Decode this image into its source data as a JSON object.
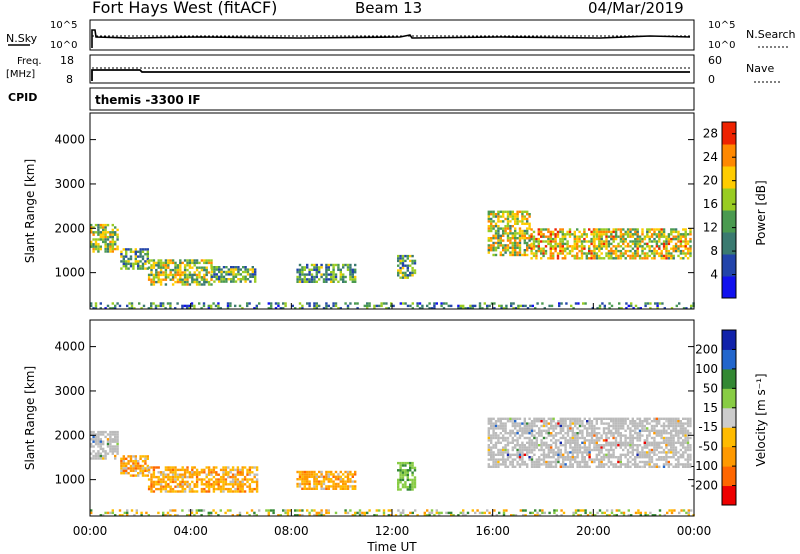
{
  "header": {
    "title": "Fort Hays West (fitACF)",
    "beam": "Beam 13",
    "date": "04/Mar/2019"
  },
  "top_strip": {
    "nsky_label": "N.Sky",
    "nsky_top": "10^5",
    "nsky_bottom": "10^0",
    "nsearch_label": "N.Search",
    "nsearch_top": "10^5",
    "nsearch_bottom": "10^0",
    "freq_label": "Freq.",
    "freq_unit": "[MHz]",
    "freq_top": "18",
    "freq_bottom": "8",
    "nave_label": "Nave",
    "nave_top": "60",
    "nave_bottom": "0",
    "cpid_label": "CPID",
    "cpid_value": "themis -3300 IF"
  },
  "colors": {
    "power_scale": [
      "#1111ee",
      "#2244aa",
      "#3a7a70",
      "#4a9a50",
      "#99cc22",
      "#ffcc00",
      "#ff8800",
      "#ee2200"
    ],
    "velocity_scale": [
      "#ee0000",
      "#ff6600",
      "#ff9900",
      "#ffbb00",
      "#cccccc",
      "#88cc44",
      "#338833",
      "#2266cc",
      "#1122aa"
    ],
    "ground_scatter": "#bbbbbb"
  },
  "chart_data": [
    {
      "type": "heatmap",
      "panel": "power",
      "title": "",
      "xlabel": "",
      "ylabel": "Slant Range [km]",
      "xlim": [
        0,
        24
      ],
      "ylim": [
        180,
        4600
      ],
      "y_ticks": [
        1000,
        2000,
        3000,
        4000
      ],
      "colorbar": {
        "label": "Power [dB]",
        "range": [
          0,
          30
        ],
        "ticks": [
          4,
          8,
          12,
          16,
          20,
          24,
          28
        ]
      },
      "regions": [
        {
          "t0": 0.0,
          "t1": 1.1,
          "r0": 1500,
          "r1": 2100,
          "level": 0.55
        },
        {
          "t0": 1.2,
          "t1": 2.3,
          "r0": 1100,
          "r1": 1550,
          "level": 0.45
        },
        {
          "t0": 2.3,
          "t1": 4.8,
          "r0": 750,
          "r1": 1300,
          "level": 0.55
        },
        {
          "t0": 4.8,
          "t1": 6.6,
          "r0": 800,
          "r1": 1150,
          "level": 0.45
        },
        {
          "t0": 8.2,
          "t1": 10.5,
          "r0": 800,
          "r1": 1200,
          "level": 0.4
        },
        {
          "t0": 12.2,
          "t1": 12.9,
          "r0": 900,
          "r1": 1400,
          "level": 0.45
        },
        {
          "t0": 15.8,
          "t1": 17.5,
          "r0": 1400,
          "r1": 2400,
          "level": 0.6
        },
        {
          "t0": 17.5,
          "t1": 20.0,
          "r0": 1300,
          "r1": 2000,
          "level": 0.65
        },
        {
          "t0": 20.0,
          "t1": 23.9,
          "r0": 1350,
          "r1": 2000,
          "level": 0.62
        },
        {
          "t0": 0.0,
          "t1": 24.0,
          "r0": 180,
          "r1": 330,
          "level": 0.35
        }
      ]
    },
    {
      "type": "heatmap",
      "panel": "velocity",
      "title": "",
      "xlabel": "Time UT",
      "ylabel": "Slant Range [km]",
      "xlim": [
        0,
        24
      ],
      "ylim": [
        180,
        4600
      ],
      "x_ticks": [
        "00:00",
        "04:00",
        "08:00",
        "12:00",
        "16:00",
        "20:00",
        "00:00"
      ],
      "y_ticks": [
        1000,
        2000,
        3000,
        4000
      ],
      "colorbar": {
        "label": "Velocity [m s⁻¹]",
        "ticks": [
          "200",
          "100",
          "50",
          "15",
          "-15",
          "-50",
          "-100",
          "-200"
        ]
      },
      "regions": [
        {
          "t0": 0.0,
          "t1": 1.1,
          "r0": 1500,
          "r1": 2100,
          "kind": "ground"
        },
        {
          "t0": 1.2,
          "t1": 2.3,
          "r0": 1100,
          "r1": 1550,
          "kind": "orange"
        },
        {
          "t0": 2.3,
          "t1": 6.6,
          "r0": 750,
          "r1": 1300,
          "kind": "orange"
        },
        {
          "t0": 8.2,
          "t1": 10.5,
          "r0": 800,
          "r1": 1200,
          "kind": "orange"
        },
        {
          "t0": 12.2,
          "t1": 12.9,
          "r0": 800,
          "r1": 1400,
          "kind": "green"
        },
        {
          "t0": 15.8,
          "t1": 23.9,
          "r0": 1300,
          "r1": 2400,
          "kind": "ground"
        },
        {
          "t0": 0.0,
          "t1": 24.0,
          "r0": 180,
          "r1": 330,
          "kind": "mixed"
        }
      ]
    }
  ]
}
